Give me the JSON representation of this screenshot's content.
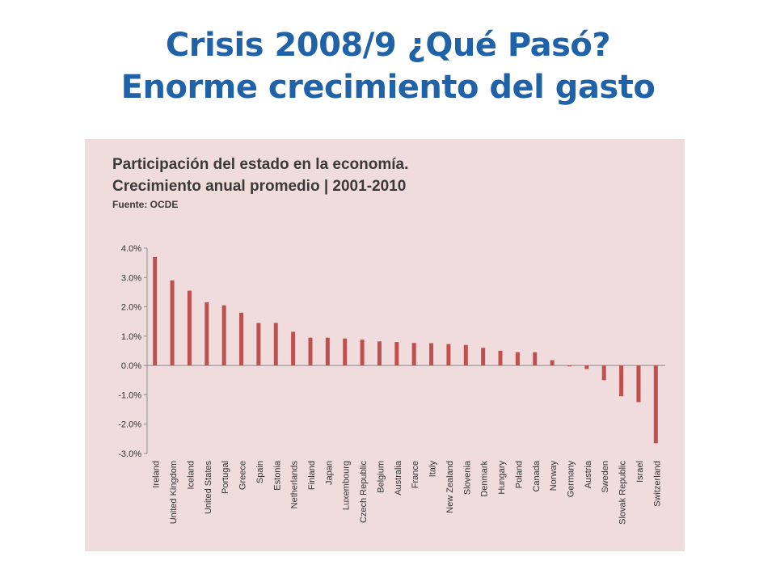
{
  "slide": {
    "title_line1": "Crisis 2008/9 ¿Qué Pasó?",
    "title_line2": "Enorme crecimiento del gasto",
    "title_color": "#1f62a7",
    "panel_color": "#f0dcdc"
  },
  "chart_data": {
    "type": "bar",
    "title": "Participación del estado en la economía.",
    "subtitle": "Crecimiento anual promedio | 2001-2010",
    "source": "Fuente: OCDE",
    "bar_color": "#c0504d",
    "ylim": [
      -3.0,
      4.0
    ],
    "yticks": [
      "4.0%",
      "3.0%",
      "2.0%",
      "1.0%",
      "0.0%",
      "-1.0%",
      "-2.0%",
      "-3.0%"
    ],
    "categories": [
      "Ireland",
      "United Kingdom",
      "Iceland",
      "United States",
      "Portugal",
      "Greece",
      "Spain",
      "Estonia",
      "Netherlands",
      "Finland",
      "Japan",
      "Luxembourg",
      "Czech Republic",
      "Belgium",
      "Australia",
      "France",
      "Italy",
      "New Zealand",
      "Slovenia",
      "Denmark",
      "Hungary",
      "Poland",
      "Canada",
      "Norway",
      "Germany",
      "Austria",
      "Sweden",
      "Slovak Republic",
      "Israel",
      "Switzerland"
    ],
    "values": [
      3.7,
      2.9,
      2.55,
      2.15,
      2.05,
      1.8,
      1.45,
      1.45,
      1.15,
      0.95,
      0.95,
      0.92,
      0.88,
      0.82,
      0.8,
      0.77,
      0.76,
      0.73,
      0.7,
      0.6,
      0.5,
      0.45,
      0.45,
      0.18,
      -0.03,
      -0.12,
      -0.5,
      -1.05,
      -1.25,
      -2.65
    ],
    "grid": false,
    "legend": "none"
  }
}
